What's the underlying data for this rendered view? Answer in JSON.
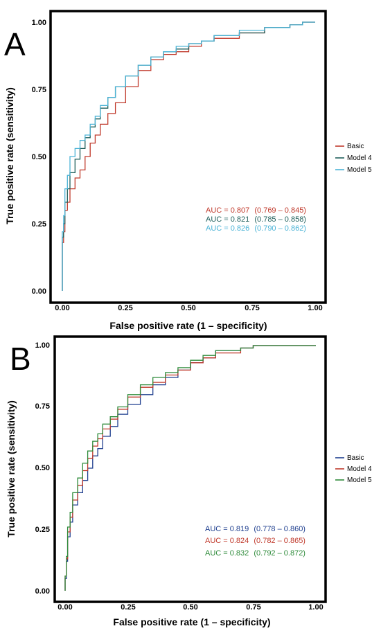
{
  "chart_data": [
    {
      "type": "line",
      "panel_label": "A",
      "xlabel": "False positive rate (1 – specificity)",
      "ylabel": "True positive rate (sensitivity)",
      "xlim": [
        0,
        1
      ],
      "ylim": [
        0,
        1
      ],
      "x_ticks": [
        "0.00",
        "0.25",
        "0.50",
        "0.75",
        "1.00"
      ],
      "y_ticks": [
        "0.00",
        "0.25",
        "0.50",
        "0.75",
        "1.00"
      ],
      "legend_position": "right",
      "series": [
        {
          "name": "Basic",
          "color": "#c0392b",
          "auc": "AUC = 0.807",
          "ci": "(0.769 – 0.845)",
          "x": [
            0,
            0.005,
            0.01,
            0.02,
            0.03,
            0.05,
            0.07,
            0.09,
            0.11,
            0.13,
            0.15,
            0.18,
            0.21,
            0.25,
            0.3,
            0.35,
            0.4,
            0.45,
            0.5,
            0.55,
            0.6,
            0.7,
            0.8,
            0.9,
            0.95,
            1.0
          ],
          "y": [
            0,
            0.18,
            0.22,
            0.3,
            0.33,
            0.38,
            0.42,
            0.45,
            0.5,
            0.55,
            0.58,
            0.62,
            0.66,
            0.7,
            0.76,
            0.82,
            0.86,
            0.88,
            0.89,
            0.91,
            0.93,
            0.94,
            0.96,
            0.98,
            0.99,
            1.0
          ]
        },
        {
          "name": "Model 4",
          "color": "#1f5f5b",
          "auc": "AUC = 0.821",
          "ci": "(0.785 – 0.858)",
          "x": [
            0,
            0.005,
            0.01,
            0.02,
            0.03,
            0.05,
            0.07,
            0.09,
            0.11,
            0.13,
            0.15,
            0.18,
            0.21,
            0.25,
            0.3,
            0.35,
            0.4,
            0.45,
            0.5,
            0.55,
            0.6,
            0.7,
            0.8,
            0.9,
            0.95,
            1.0
          ],
          "y": [
            0,
            0.2,
            0.25,
            0.33,
            0.38,
            0.44,
            0.49,
            0.53,
            0.57,
            0.61,
            0.64,
            0.68,
            0.72,
            0.76,
            0.8,
            0.84,
            0.87,
            0.89,
            0.9,
            0.92,
            0.93,
            0.95,
            0.96,
            0.98,
            0.99,
            1.0
          ]
        },
        {
          "name": "Model 5",
          "color": "#4bb3d6",
          "auc": "AUC = 0.826",
          "ci": "(0.790 – 0.862)",
          "x": [
            0,
            0.005,
            0.01,
            0.02,
            0.03,
            0.05,
            0.07,
            0.09,
            0.11,
            0.13,
            0.15,
            0.18,
            0.21,
            0.25,
            0.3,
            0.35,
            0.4,
            0.45,
            0.5,
            0.55,
            0.6,
            0.7,
            0.8,
            0.9,
            0.95,
            1.0
          ],
          "y": [
            0,
            0.22,
            0.28,
            0.38,
            0.43,
            0.5,
            0.53,
            0.56,
            0.58,
            0.62,
            0.65,
            0.69,
            0.72,
            0.76,
            0.8,
            0.84,
            0.87,
            0.89,
            0.91,
            0.92,
            0.93,
            0.95,
            0.97,
            0.98,
            0.99,
            1.0
          ]
        }
      ]
    },
    {
      "type": "line",
      "panel_label": "B",
      "xlabel": "False positive rate (1 – specificity)",
      "ylabel": "True positive rate (sensitivity)",
      "xlim": [
        0,
        1
      ],
      "ylim": [
        0,
        1
      ],
      "x_ticks": [
        "0.00",
        "0.25",
        "0.50",
        "0.75",
        "1.00"
      ],
      "y_ticks": [
        "0.00",
        "0.25",
        "0.50",
        "0.75",
        "1.00"
      ],
      "legend_position": "right",
      "series": [
        {
          "name": "Basic",
          "color": "#1f3f8f",
          "auc": "AUC = 0.819",
          "ci": "(0.778 – 0.860)",
          "x": [
            0,
            0.005,
            0.01,
            0.02,
            0.03,
            0.05,
            0.07,
            0.09,
            0.11,
            0.13,
            0.15,
            0.18,
            0.21,
            0.25,
            0.3,
            0.35,
            0.4,
            0.45,
            0.5,
            0.55,
            0.6,
            0.7,
            0.75,
            0.8,
            0.9,
            1.0
          ],
          "y": [
            0,
            0.05,
            0.12,
            0.22,
            0.28,
            0.35,
            0.4,
            0.45,
            0.5,
            0.55,
            0.58,
            0.63,
            0.67,
            0.72,
            0.76,
            0.8,
            0.84,
            0.87,
            0.9,
            0.93,
            0.95,
            0.98,
            0.99,
            1.0,
            1.0,
            1.0
          ]
        },
        {
          "name": "Model 4",
          "color": "#c0392b",
          "auc": "AUC = 0.824",
          "ci": "(0.782 – 0.865)",
          "x": [
            0,
            0.005,
            0.01,
            0.02,
            0.03,
            0.05,
            0.07,
            0.09,
            0.11,
            0.13,
            0.15,
            0.18,
            0.21,
            0.25,
            0.3,
            0.35,
            0.4,
            0.45,
            0.5,
            0.55,
            0.6,
            0.7,
            0.75,
            0.8,
            0.9,
            1.0
          ],
          "y": [
            0,
            0.06,
            0.13,
            0.24,
            0.3,
            0.37,
            0.43,
            0.49,
            0.54,
            0.59,
            0.62,
            0.66,
            0.7,
            0.74,
            0.79,
            0.83,
            0.85,
            0.88,
            0.9,
            0.93,
            0.95,
            0.97,
            0.99,
            1.0,
            1.0,
            1.0
          ]
        },
        {
          "name": "Model 5",
          "color": "#2e8b3a",
          "auc": "AUC = 0.832",
          "ci": "(0.792 – 0.872)",
          "x": [
            0,
            0.005,
            0.01,
            0.02,
            0.03,
            0.05,
            0.07,
            0.09,
            0.11,
            0.13,
            0.15,
            0.18,
            0.21,
            0.25,
            0.3,
            0.35,
            0.4,
            0.45,
            0.5,
            0.55,
            0.6,
            0.7,
            0.75,
            0.8,
            0.9,
            1.0
          ],
          "y": [
            0,
            0.06,
            0.14,
            0.26,
            0.32,
            0.4,
            0.46,
            0.52,
            0.57,
            0.61,
            0.64,
            0.68,
            0.71,
            0.75,
            0.8,
            0.84,
            0.87,
            0.89,
            0.91,
            0.94,
            0.96,
            0.98,
            0.99,
            1.0,
            1.0,
            1.0
          ]
        }
      ]
    }
  ]
}
